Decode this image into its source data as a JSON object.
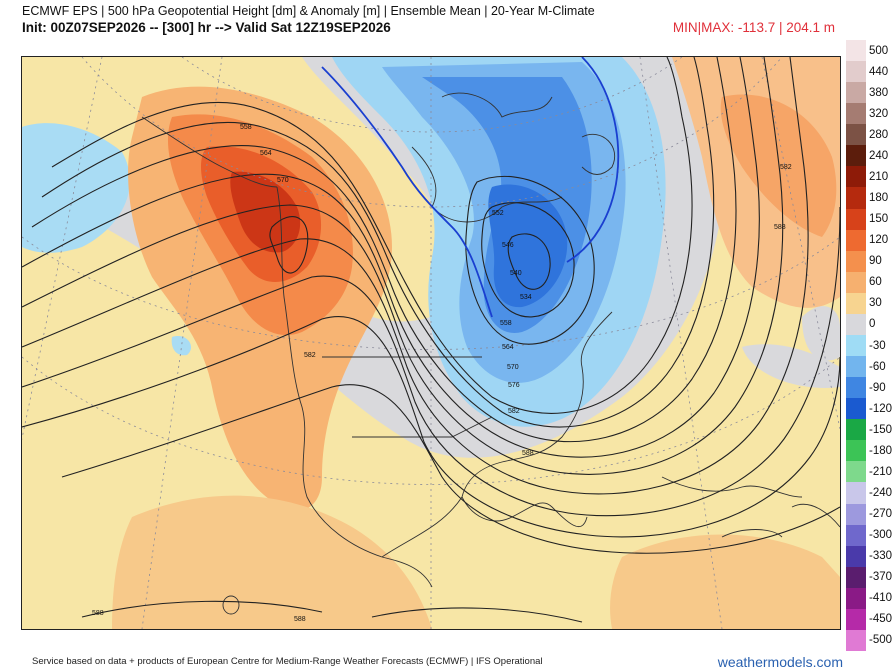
{
  "header": {
    "line1": "ECMWF EPS | 500 hPa Geopotential Height [dm] & Anomaly [m] | Ensemble Mean | 20-Year M-Climate",
    "line2": "Init: 00Z07SEP2026 -- [300] hr --> Valid Sat 12Z19SEP2026",
    "minmax": "MIN|MAX: -113.7 | 204.1 m"
  },
  "colorbar": {
    "entries": [
      {
        "label": "500",
        "color": "#f3e4e6"
      },
      {
        "label": "440",
        "color": "#e2cccc"
      },
      {
        "label": "380",
        "color": "#c9a9a4"
      },
      {
        "label": "320",
        "color": "#a57c72"
      },
      {
        "label": "280",
        "color": "#7c5245"
      },
      {
        "label": "240",
        "color": "#5c1d0c"
      },
      {
        "label": "210",
        "color": "#8e1b08"
      },
      {
        "label": "180",
        "color": "#b52a0e"
      },
      {
        "label": "150",
        "color": "#d7421a"
      },
      {
        "label": "120",
        "color": "#ee6a30"
      },
      {
        "label": "90",
        "color": "#f4904d"
      },
      {
        "label": "60",
        "color": "#f6b06f"
      },
      {
        "label": "30",
        "color": "#f7d490"
      },
      {
        "label": "0",
        "color": "#d8d8dc"
      },
      {
        "label": "-30",
        "color": "#9fdcf5"
      },
      {
        "label": "-60",
        "color": "#72b5ee"
      },
      {
        "label": "-90",
        "color": "#3f86e2"
      },
      {
        "label": "-120",
        "color": "#1a5ad0"
      },
      {
        "label": "-150",
        "color": "#1aa845"
      },
      {
        "label": "-180",
        "color": "#3cc456"
      },
      {
        "label": "-210",
        "color": "#7ed98c"
      },
      {
        "label": "-240",
        "color": "#c9c7ea"
      },
      {
        "label": "-270",
        "color": "#9d99de"
      },
      {
        "label": "-300",
        "color": "#6f68cc"
      },
      {
        "label": "-330",
        "color": "#4a3aaa"
      },
      {
        "label": "-370",
        "color": "#5a1d6e"
      },
      {
        "label": "-410",
        "color": "#8a1a86"
      },
      {
        "label": "-450",
        "color": "#b52aa8"
      },
      {
        "label": "-500",
        "color": "#e07ad4"
      }
    ]
  },
  "contour_labels": [
    "558",
    "564",
    "570",
    "552",
    "546",
    "540",
    "534",
    "558",
    "564",
    "570",
    "576",
    "582",
    "588",
    "582",
    "588",
    "582",
    "588",
    "588"
  ],
  "footer": {
    "credit": "Service based on data + products of European Centre for Medium-Range Weather Forecasts (ECMWF) | IFS Operational",
    "brand": "weathermodels.com"
  }
}
